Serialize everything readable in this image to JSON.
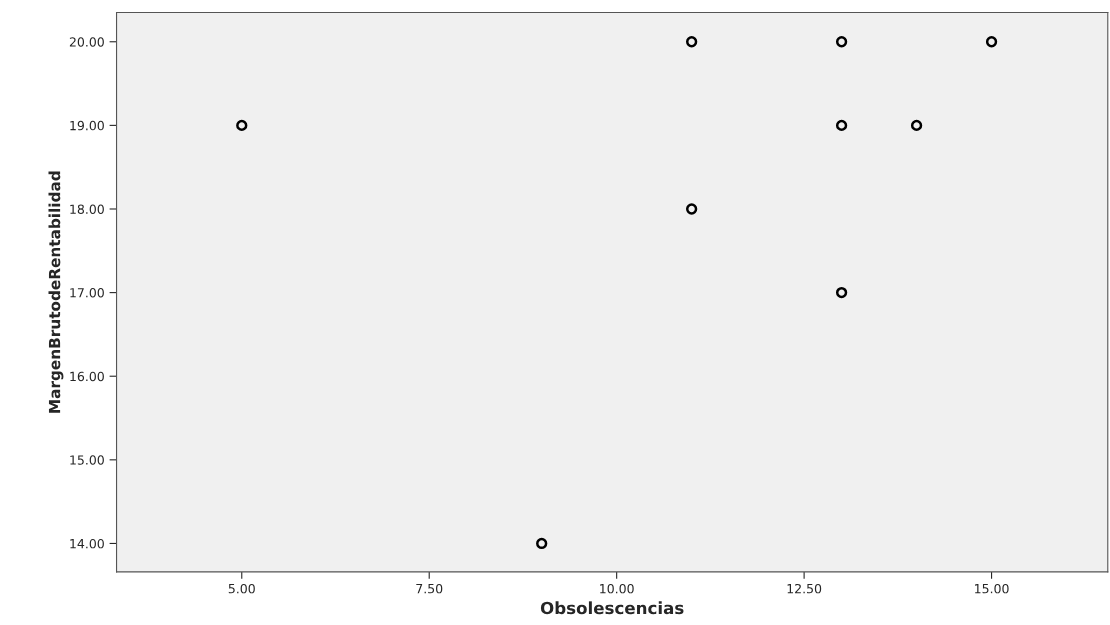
{
  "chart_data": {
    "type": "scatter",
    "xlabel": "Obsolescencias",
    "ylabel": "MargenBrutodeRentabilidad",
    "x": [
      5,
      9,
      11,
      11,
      13,
      13,
      13,
      14,
      15
    ],
    "values": [
      19,
      14,
      20,
      18,
      20,
      19,
      17,
      19,
      20
    ],
    "color": "#000000",
    "marker": "circle",
    "grid": false,
    "xlim": [
      3.33,
      16.55
    ],
    "ylim": [
      13.66,
      20.35
    ],
    "xticks": [
      {
        "value": 5,
        "label": "5.00"
      },
      {
        "value": 7.5,
        "label": "7.50"
      },
      {
        "value": 10,
        "label": "10.00"
      },
      {
        "value": 12.5,
        "label": "12.50"
      },
      {
        "value": 15,
        "label": "15.00"
      }
    ],
    "yticks": [
      {
        "value": 14,
        "label": "14.00"
      },
      {
        "value": 15,
        "label": "15.00"
      },
      {
        "value": 16,
        "label": "16.00"
      },
      {
        "value": 17,
        "label": "17.00"
      },
      {
        "value": 18,
        "label": "18.00"
      },
      {
        "value": 19,
        "label": "19.00"
      },
      {
        "value": 20,
        "label": "20.00"
      }
    ]
  }
}
